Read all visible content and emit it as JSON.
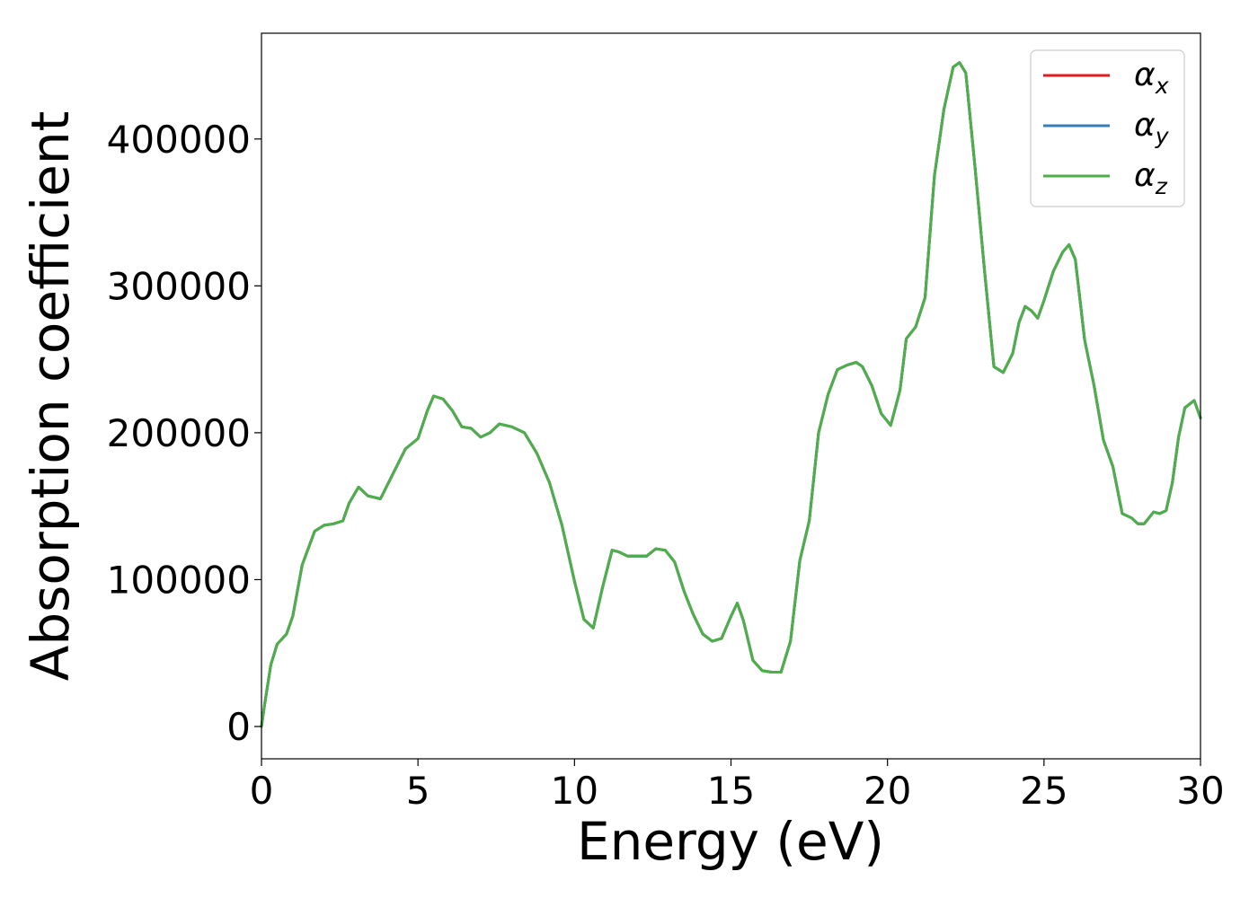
{
  "chart_data": {
    "type": "line",
    "xlabel": "Energy (eV)",
    "ylabel": "Absorption coefficient",
    "xlim": [
      0,
      30
    ],
    "ylim": [
      -22000,
      472000
    ],
    "xticks": [
      0,
      5,
      10,
      15,
      20,
      25,
      30
    ],
    "yticks": [
      0,
      100000,
      200000,
      300000,
      400000
    ],
    "grid": false,
    "legend_position": "upper right",
    "series": [
      {
        "name": "α",
        "subscript": "x",
        "color": "#e41a1c"
      },
      {
        "name": "α",
        "subscript": "y",
        "color": "#377eb8"
      },
      {
        "name": "α",
        "subscript": "z",
        "color": "#4daf4a"
      }
    ],
    "x": [
      0,
      0.1,
      0.3,
      0.5,
      0.8,
      1.0,
      1.3,
      1.7,
      2.0,
      2.3,
      2.6,
      2.8,
      3.1,
      3.4,
      3.8,
      4.2,
      4.6,
      5.0,
      5.3,
      5.5,
      5.8,
      6.1,
      6.4,
      6.7,
      7.0,
      7.3,
      7.6,
      8.0,
      8.4,
      8.8,
      9.2,
      9.6,
      10.0,
      10.3,
      10.6,
      10.9,
      11.2,
      11.4,
      11.7,
      12.0,
      12.3,
      12.6,
      12.9,
      13.2,
      13.5,
      13.8,
      14.1,
      14.4,
      14.7,
      15.0,
      15.2,
      15.4,
      15.7,
      16.0,
      16.3,
      16.6,
      16.9,
      17.2,
      17.5,
      17.8,
      18.1,
      18.4,
      18.7,
      19.0,
      19.2,
      19.5,
      19.8,
      20.1,
      20.4,
      20.6,
      20.9,
      21.2,
      21.5,
      21.8,
      22.1,
      22.3,
      22.5,
      22.8,
      23.1,
      23.4,
      23.7,
      24.0,
      24.2,
      24.4,
      24.6,
      24.8,
      25.0,
      25.3,
      25.6,
      25.8,
      26.0,
      26.3,
      26.6,
      26.9,
      27.2,
      27.5,
      27.8,
      28.0,
      28.2,
      28.5,
      28.7,
      28.9,
      29.1,
      29.3,
      29.5,
      29.8,
      30.0
    ],
    "values": [
      0,
      15000,
      42000,
      56000,
      63000,
      75000,
      110000,
      133000,
      137000,
      138000,
      140000,
      152000,
      163000,
      157000,
      155000,
      172000,
      189000,
      196000,
      215000,
      225000,
      223000,
      215000,
      204000,
      203000,
      197000,
      200000,
      206000,
      204000,
      200000,
      186000,
      166000,
      137000,
      99000,
      73000,
      67000,
      95000,
      120000,
      119000,
      116000,
      116000,
      116000,
      121000,
      120000,
      112000,
      92000,
      76000,
      63000,
      58000,
      60000,
      75000,
      84000,
      72000,
      45000,
      38000,
      37000,
      37000,
      58000,
      113000,
      140000,
      200000,
      226000,
      243000,
      246000,
      248000,
      245000,
      232000,
      213000,
      205000,
      229000,
      264000,
      272000,
      292000,
      375000,
      420000,
      449000,
      452000,
      445000,
      380000,
      310000,
      245000,
      241000,
      254000,
      275000,
      286000,
      283000,
      278000,
      290000,
      310000,
      323000,
      328000,
      318000,
      263000,
      232000,
      195000,
      177000,
      145000,
      142000,
      138000,
      138000,
      146000,
      145000,
      147000,
      166000,
      197000,
      217000,
      222000,
      210000
    ]
  }
}
